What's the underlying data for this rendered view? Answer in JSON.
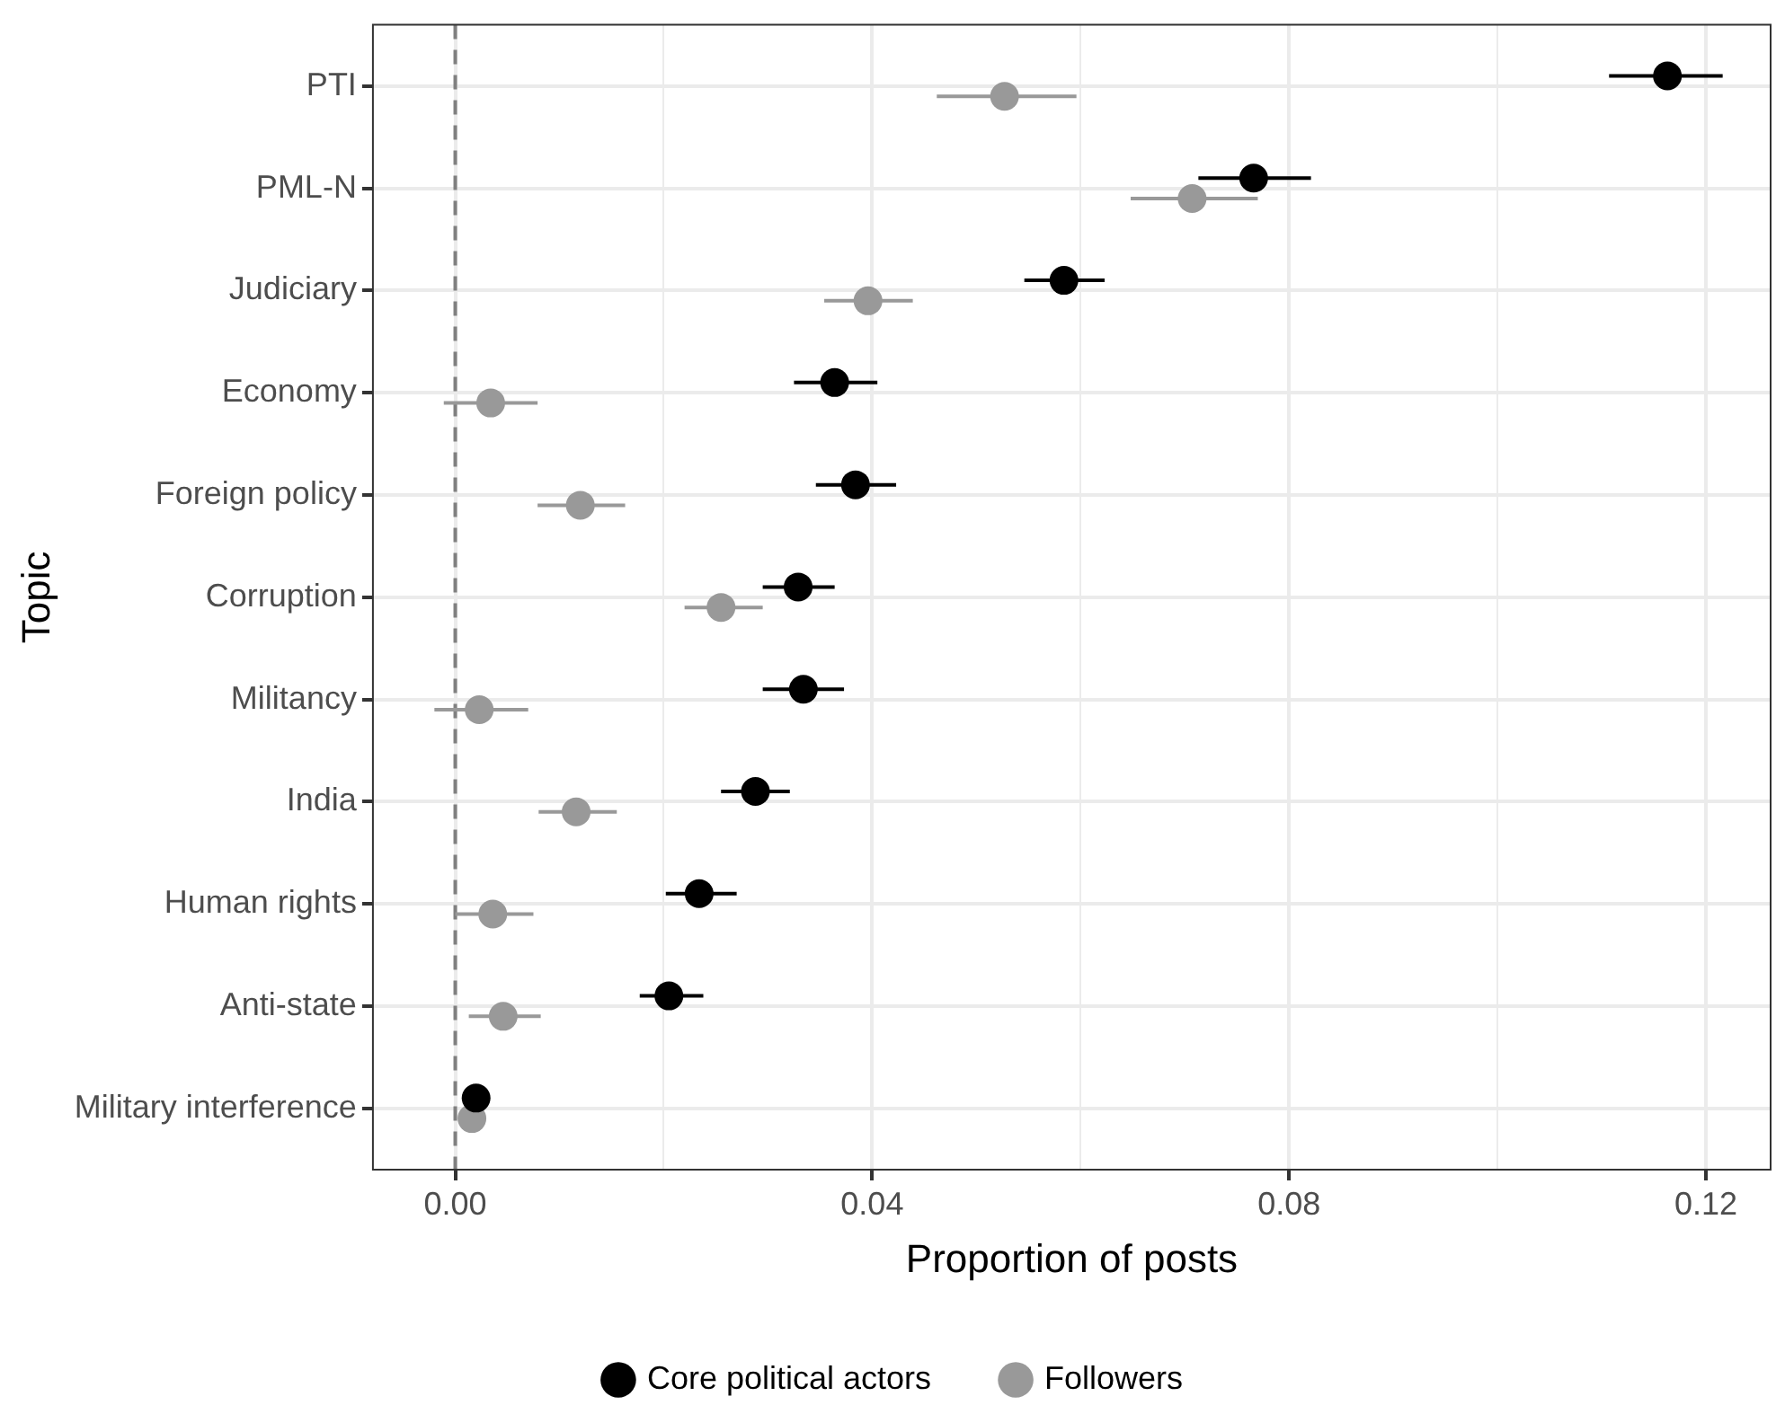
{
  "chart_data": {
    "type": "scatter",
    "orientation": "horizontal",
    "xlabel": "Proportion of posts",
    "ylabel": "Topic",
    "categories": [
      "PTI",
      "PML-N",
      "Judiciary",
      "Economy",
      "Foreign policy",
      "Corruption",
      "Militancy",
      "India",
      "Human rights",
      "Anti-state",
      "Military interference"
    ],
    "series": [
      {
        "name": "Core political actors",
        "color": "#000000",
        "values": [
          0.1163,
          0.0766,
          0.0584,
          0.0364,
          0.0384,
          0.0329,
          0.0334,
          0.0288,
          0.0234,
          0.0205,
          0.002
        ],
        "errors": [
          [
            0.1107,
            0.1216
          ],
          [
            0.0713,
            0.0821
          ],
          [
            0.0546,
            0.0623
          ],
          [
            0.0325,
            0.0405
          ],
          [
            0.0346,
            0.0423
          ],
          [
            0.0295,
            0.0364
          ],
          [
            0.0295,
            0.0373
          ],
          [
            0.0255,
            0.0321
          ],
          [
            0.0202,
            0.027
          ],
          [
            0.0177,
            0.0238
          ],
          null
        ]
      },
      {
        "name": "Followers",
        "color": "#999999",
        "values": [
          0.0527,
          0.0707,
          0.0396,
          0.0034,
          0.012,
          0.0255,
          0.0023,
          0.0116,
          0.0036,
          0.0046,
          0.0016
        ],
        "errors": [
          [
            0.0462,
            0.0596
          ],
          [
            0.0648,
            0.077
          ],
          [
            0.0354,
            0.0439
          ],
          [
            -0.0011,
            0.0079
          ],
          [
            0.0079,
            0.0163
          ],
          [
            0.022,
            0.0295
          ],
          [
            -0.002,
            0.007
          ],
          [
            0.008,
            0.0155
          ],
          [
            0.0,
            0.0075
          ],
          [
            0.0013,
            0.0082
          ],
          null
        ]
      }
    ],
    "xlim": [
      -0.0079,
      0.1262
    ],
    "xticks": [
      {
        "value": 0,
        "label": "0.00"
      },
      {
        "value": 0.02,
        "label": null
      },
      {
        "value": 0.04,
        "label": "0.04"
      },
      {
        "value": 0.06,
        "label": null
      },
      {
        "value": 0.08,
        "label": "0.08"
      },
      {
        "value": 0.1,
        "label": null
      },
      {
        "value": 0.12,
        "label": "0.12"
      }
    ],
    "ref_lines": [
      {
        "axis": "x",
        "value": 0,
        "color": "#808080",
        "line_style": "dashed"
      }
    ],
    "grid": true,
    "legend": "bottom",
    "marker": "circle"
  }
}
